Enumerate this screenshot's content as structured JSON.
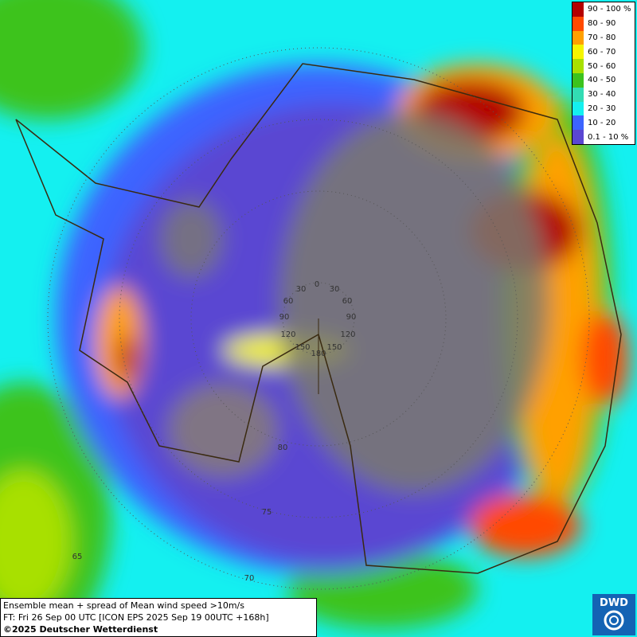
{
  "map": {
    "legend": {
      "items": [
        {
          "label": "90 - 100 %",
          "color": "#b40000"
        },
        {
          "label": "80 - 90",
          "color": "#ff4a00"
        },
        {
          "label": "70 - 80",
          "color": "#ffa000"
        },
        {
          "label": "60 - 70",
          "color": "#f5f500"
        },
        {
          "label": "50 - 60",
          "color": "#a8e000"
        },
        {
          "label": "40 - 50",
          "color": "#3cc31e"
        },
        {
          "label": "30 - 40",
          "color": "#32dcb4"
        },
        {
          "label": "20 - 30",
          "color": "#14f0f0"
        },
        {
          "label": "10 - 20",
          "color": "#3c64ff"
        },
        {
          "label": "0.1 - 10 %",
          "color": "#5a46d2"
        }
      ]
    },
    "longitude_labels": [
      "0",
      "30",
      "30",
      "60",
      "60",
      "90",
      "90",
      "120",
      "120",
      "150",
      "150",
      "180"
    ],
    "latitude_labels": [
      "80",
      "75",
      "70",
      "65"
    ],
    "caption": {
      "line1": "Ensemble mean + spread of Mean wind speed >10m/s",
      "line2": "FT: Fri 26 Sep 00 UTC [ICON EPS 2025 Sep 19 00UTC +168h]",
      "line3": "©2025 Deutscher Wetterdienst"
    },
    "logo": "DWD"
  }
}
